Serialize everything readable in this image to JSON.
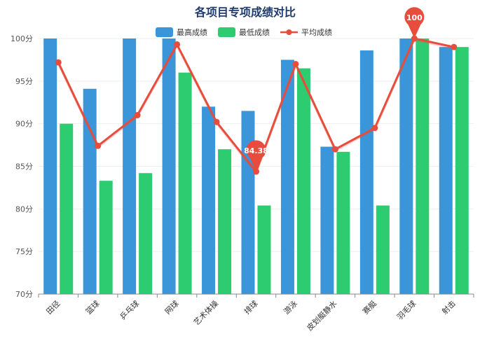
{
  "chart_data": {
    "type": "bar",
    "title": "各项目专项成绩对比",
    "categories": [
      "田径",
      "篮球",
      "乒乓球",
      "网球",
      "艺术体操",
      "排球",
      "游泳",
      "皮划艇静水",
      "赛艇",
      "羽毛球",
      "射击"
    ],
    "series": [
      {
        "name": "最高成绩",
        "type": "bar",
        "color": "#3a96d9",
        "values": [
          100,
          94.1,
          100,
          100,
          92.0,
          91.5,
          97.5,
          87.3,
          98.6,
          100,
          99.0
        ]
      },
      {
        "name": "最低成绩",
        "type": "bar",
        "color": "#2ecc71",
        "values": [
          90.0,
          83.3,
          84.2,
          96.0,
          87.0,
          80.4,
          96.5,
          86.7,
          80.4,
          100,
          99.0
        ]
      },
      {
        "name": "平均成绩",
        "type": "line",
        "color": "#e74c3c",
        "values": [
          97.2,
          87.4,
          91.0,
          99.3,
          90.2,
          84.38,
          97.0,
          87.0,
          89.5,
          100,
          99.0
        ]
      }
    ],
    "ylim": [
      70,
      100
    ],
    "yticks": [
      "70分",
      "75分",
      "80分",
      "85分",
      "90分",
      "95分",
      "100分"
    ],
    "ytick_values": [
      70,
      75,
      80,
      85,
      90,
      95,
      100
    ],
    "grid": true,
    "legend": "top",
    "markers": [
      {
        "label": "100",
        "category_index": 9,
        "value": 100
      },
      {
        "label": "84.38",
        "category_index": 5,
        "value": 84.38
      }
    ]
  }
}
